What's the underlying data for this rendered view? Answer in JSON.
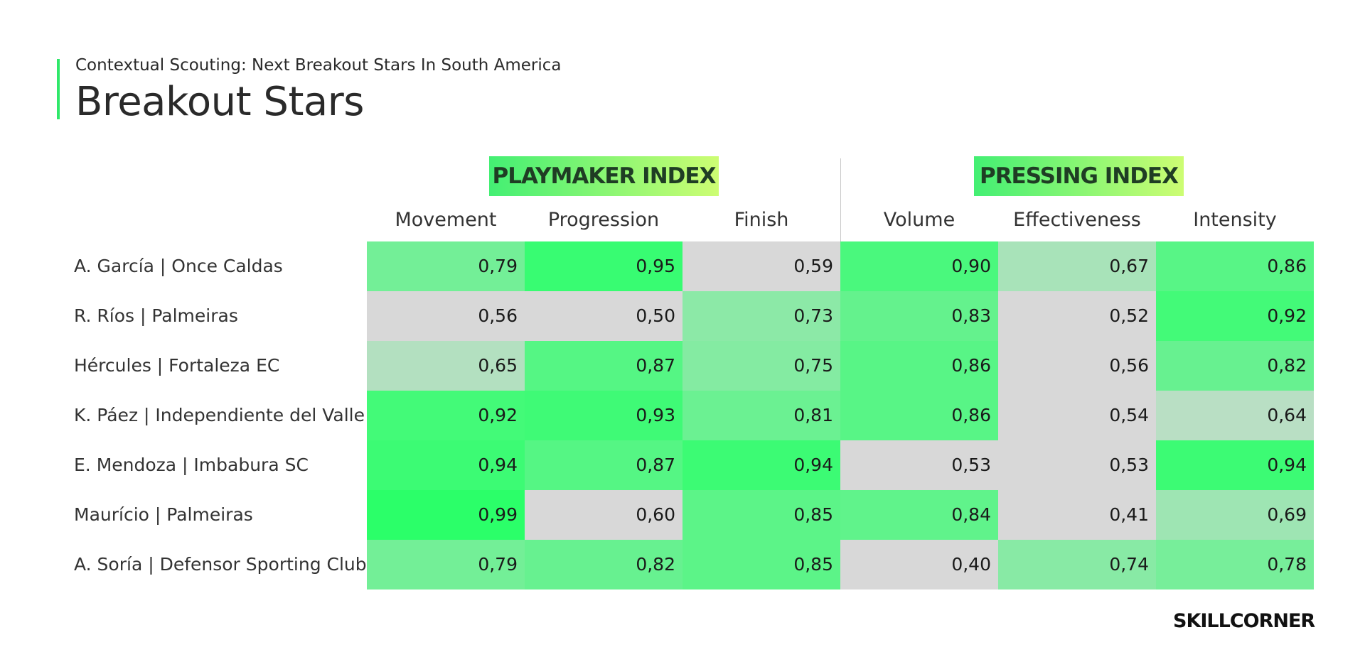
{
  "header": {
    "subtitle": "Contextual Scouting: Next Breakout Stars In South America",
    "title": "Breakout Stars"
  },
  "chart_data": {
    "type": "heatmap",
    "groups": [
      {
        "name": "PLAYMAKER INDEX",
        "columns": [
          "Movement",
          "Progression",
          "Finish"
        ]
      },
      {
        "name": "PRESSING INDEX",
        "columns": [
          "Volume",
          "Effectiveness",
          "Intensity"
        ]
      }
    ],
    "columns": [
      "Movement",
      "Progression",
      "Finish",
      "Volume",
      "Effectiveness",
      "Intensity"
    ],
    "rows": [
      "A. García | Once Caldas",
      "R. Ríos | Palmeiras",
      "Hércules | Fortaleza EC",
      "K. Páez | Independiente del Valle",
      "E. Mendoza | Imbabura SC",
      "Maurício | Palmeiras",
      "A. Soría | Defensor Sporting Club"
    ],
    "values": [
      [
        "0,79",
        "0,95",
        "0,59",
        "0,90",
        "0,67",
        "0,86"
      ],
      [
        "0,56",
        "0,50",
        "0,73",
        "0,83",
        "0,52",
        "0,92"
      ],
      [
        "0,65",
        "0,87",
        "0,75",
        "0,86",
        "0,56",
        "0,82"
      ],
      [
        "0,92",
        "0,93",
        "0,81",
        "0,86",
        "0,54",
        "0,64"
      ],
      [
        "0,94",
        "0,87",
        "0,94",
        "0,53",
        "0,53",
        "0,94"
      ],
      [
        "0,99",
        "0,60",
        "0,85",
        "0,84",
        "0,41",
        "0,69"
      ],
      [
        "0,79",
        "0,82",
        "0,85",
        "0,40",
        "0,74",
        "0,78"
      ]
    ],
    "colors": {
      "low": "#d8d8d8",
      "high": "#2bff69",
      "accent_start": "#43ef73",
      "accent_end": "#cdfd73"
    }
  },
  "brand": {
    "logo_text": "SKILLCORNER"
  }
}
